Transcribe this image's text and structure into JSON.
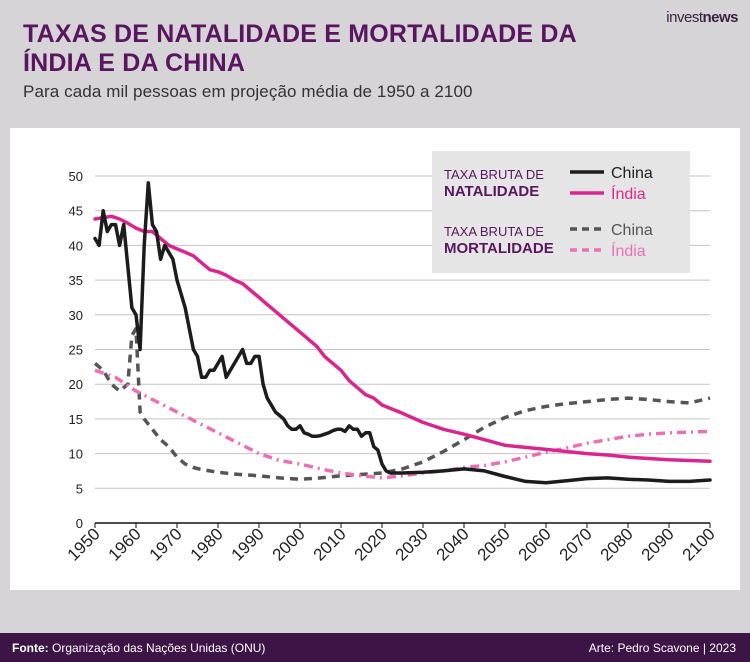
{
  "brand": {
    "part1": "invest",
    "part2": "news"
  },
  "header": {
    "title": "TAXAS DE NATALIDADE E MORTALIDADE DA ÍNDIA E DA CHINA",
    "subtitle": "Para cada mil pessoas em projeção média de 1950 a 2100"
  },
  "legend": {
    "birth_prefix": "TAXA BRUTA DE",
    "birth_word": "NATALIDADE",
    "death_prefix": "TAXA BRUTA DE",
    "death_word": "MORTALIDADE",
    "china": "China",
    "india": "Índia"
  },
  "footer": {
    "source_label": "Fonte:",
    "source_text": "Organização das Nações Unidas (ONU)",
    "art": "Arte: Pedro Scavone | 2023"
  },
  "colors": {
    "china": "#1c1c1c",
    "india": "#d9268f",
    "china_death": "#555555",
    "india_death": "#ec6fb5",
    "title": "#5a1560",
    "grid": "#c4c4c4",
    "legend_bg": "#e6e5e6",
    "footer_bg": "#3d1446"
  },
  "chart_data": {
    "type": "line",
    "title": "TAXAS DE NATALIDADE E MORTALIDADE DA ÍNDIA E DA CHINA",
    "subtitle": "Para cada mil pessoas em projeção média de 1950 a 2100",
    "xlabel": "",
    "ylabel": "",
    "xlim": [
      1950,
      2100
    ],
    "ylim": [
      0,
      50
    ],
    "xticks": [
      1950,
      1960,
      1970,
      1980,
      1990,
      2000,
      2010,
      2020,
      2030,
      2040,
      2050,
      2060,
      2070,
      2080,
      2090,
      2100
    ],
    "yticks": [
      0,
      5,
      10,
      15,
      20,
      25,
      30,
      35,
      40,
      45,
      50
    ],
    "grid": true,
    "legend_position": "top-right",
    "series": [
      {
        "group": "TAXA BRUTA DE NATALIDADE",
        "name": "China",
        "style": "solid",
        "x": [
          1950,
          1951,
          1952,
          1953,
          1954,
          1955,
          1956,
          1957,
          1958,
          1959,
          1960,
          1961,
          1962,
          1963,
          1964,
          1965,
          1966,
          1967,
          1968,
          1969,
          1970,
          1971,
          1972,
          1973,
          1974,
          1975,
          1976,
          1977,
          1978,
          1979,
          1980,
          1981,
          1982,
          1983,
          1984,
          1985,
          1986,
          1987,
          1988,
          1989,
          1990,
          1991,
          1992,
          1993,
          1994,
          1995,
          1996,
          1997,
          1998,
          1999,
          2000,
          2001,
          2002,
          2003,
          2004,
          2005,
          2006,
          2007,
          2008,
          2009,
          2010,
          2011,
          2012,
          2013,
          2014,
          2015,
          2016,
          2017,
          2018,
          2019,
          2020,
          2021,
          2022,
          2025,
          2030,
          2035,
          2040,
          2045,
          2050,
          2055,
          2060,
          2065,
          2070,
          2075,
          2080,
          2085,
          2090,
          2095,
          2100
        ],
        "values": [
          41,
          40,
          45,
          42,
          43,
          43,
          40,
          43,
          37,
          31,
          30,
          25,
          40,
          49,
          43,
          42,
          38,
          40,
          39,
          38,
          35,
          33,
          31,
          28,
          25,
          24,
          21,
          21,
          22,
          22,
          23,
          24,
          21,
          22,
          23,
          24,
          25,
          23,
          23,
          24,
          24,
          20,
          18,
          17,
          16,
          15.5,
          15,
          14,
          13.5,
          13.5,
          14,
          13,
          12.8,
          12.5,
          12.5,
          12.6,
          12.8,
          13,
          13.3,
          13.5,
          13.5,
          13.2,
          14,
          13.5,
          13.5,
          12.5,
          13,
          13,
          11,
          10.5,
          8.5,
          7.5,
          7.2,
          7.2,
          7.3,
          7.5,
          7.8,
          7.5,
          6.7,
          6,
          5.8,
          6.1,
          6.4,
          6.5,
          6.3,
          6.2,
          6,
          6,
          6.2
        ]
      },
      {
        "group": "TAXA BRUTA DE NATALIDADE",
        "name": "Índia",
        "style": "solid",
        "x": [
          1950,
          1952,
          1954,
          1956,
          1958,
          1960,
          1962,
          1964,
          1966,
          1968,
          1970,
          1972,
          1974,
          1976,
          1978,
          1980,
          1982,
          1984,
          1986,
          1988,
          1990,
          1992,
          1994,
          1996,
          1998,
          2000,
          2002,
          2004,
          2006,
          2008,
          2010,
          2012,
          2014,
          2016,
          2018,
          2020,
          2025,
          2030,
          2035,
          2040,
          2045,
          2050,
          2055,
          2060,
          2065,
          2070,
          2075,
          2080,
          2085,
          2090,
          2095,
          2100
        ],
        "values": [
          43.8,
          44,
          44.2,
          43.8,
          43.2,
          42.5,
          42,
          42,
          41,
          40,
          39.5,
          39,
          38.5,
          37.5,
          36.5,
          36.2,
          35.7,
          35,
          34.5,
          33.5,
          32.5,
          31.5,
          30.5,
          29.5,
          28.5,
          27.5,
          26.5,
          25.5,
          24,
          23,
          22,
          20.5,
          19.5,
          18.5,
          18,
          17,
          15.8,
          14.5,
          13.5,
          12.8,
          12,
          11.2,
          10.9,
          10.6,
          10.3,
          10,
          9.8,
          9.5,
          9.3,
          9.1,
          9,
          8.9
        ]
      },
      {
        "group": "TAXA BRUTA DE MORTALIDADE",
        "name": "China",
        "style": "dashed",
        "x": [
          1950,
          1952,
          1954,
          1956,
          1958,
          1959,
          1960,
          1961,
          1962,
          1964,
          1966,
          1968,
          1970,
          1972,
          1974,
          1976,
          1978,
          1980,
          1985,
          1990,
          1995,
          2000,
          2005,
          2010,
          2015,
          2020,
          2025,
          2030,
          2035,
          2040,
          2045,
          2050,
          2055,
          2060,
          2065,
          2070,
          2075,
          2080,
          2085,
          2090,
          2095,
          2100
        ],
        "values": [
          23,
          22,
          20,
          19,
          20,
          27,
          28,
          16,
          15,
          13.5,
          12,
          11,
          9.5,
          8.5,
          8,
          7.7,
          7.5,
          7.3,
          7,
          6.8,
          6.5,
          6.3,
          6.5,
          6.8,
          7,
          7.2,
          7.8,
          8.8,
          10.3,
          12,
          13.8,
          15.2,
          16.2,
          16.8,
          17.2,
          17.5,
          17.8,
          18,
          17.8,
          17.5,
          17.3,
          18
        ]
      },
      {
        "group": "TAXA BRUTA DE MORTALIDADE",
        "name": "Índia",
        "style": "dashdot",
        "x": [
          1950,
          1955,
          1960,
          1965,
          1970,
          1975,
          1980,
          1985,
          1990,
          1995,
          2000,
          2005,
          2010,
          2015,
          2020,
          2025,
          2030,
          2035,
          2040,
          2045,
          2050,
          2055,
          2060,
          2065,
          2070,
          2075,
          2080,
          2085,
          2090,
          2095,
          2100
        ],
        "values": [
          22,
          21,
          19,
          17.5,
          16,
          14.5,
          13,
          11.5,
          10,
          9,
          8.5,
          7.8,
          7.2,
          6.8,
          6.5,
          6.8,
          7.2,
          7.5,
          8,
          8.3,
          8.8,
          9.5,
          10.2,
          10.8,
          11.5,
          12,
          12.5,
          12.8,
          13,
          13.1,
          13.2
        ]
      }
    ]
  }
}
